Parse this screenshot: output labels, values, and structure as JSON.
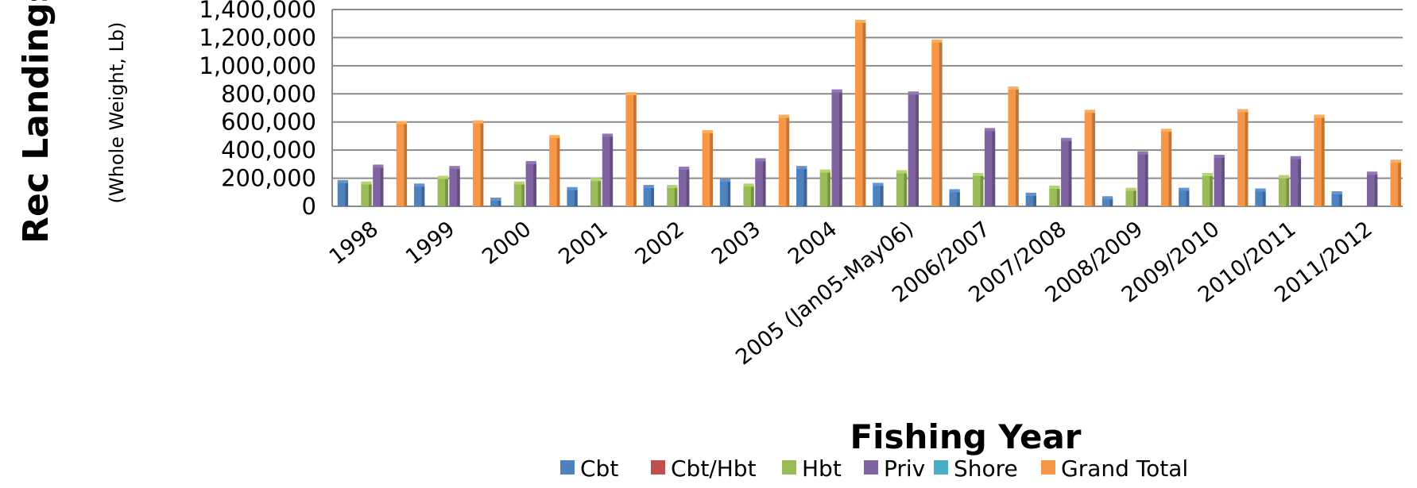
{
  "chart_data": {
    "type": "bar",
    "ylabel": "Rec Landings",
    "ylabel_sub": "(Whole Weight, Lb)",
    "xlabel": "Fishing Year",
    "ylim": [
      0,
      1400000
    ],
    "yticks": [
      "0",
      "200,000",
      "400,000",
      "600,000",
      "800,000",
      "1,000,000",
      "1,200,000",
      "1,400,000"
    ],
    "categories": [
      "1998",
      "1999",
      "2000",
      "2001",
      "2002",
      "2003",
      "2004",
      "2005 (Jan05-May06)",
      "2006/2007",
      "2007/2008",
      "2008/2009",
      "2009/2010",
      "2010/2011",
      "2011/2012"
    ],
    "series": [
      {
        "name": "Cbt",
        "color": "#4F81BD",
        "values": [
          170000,
          145000,
          45000,
          120000,
          135000,
          180000,
          270000,
          150000,
          105000,
          80000,
          55000,
          115000,
          110000,
          90000
        ]
      },
      {
        "name": "Cbt/Hbt",
        "color": "#C0504D",
        "values": [
          0,
          0,
          0,
          0,
          0,
          0,
          0,
          0,
          0,
          0,
          0,
          0,
          0,
          0
        ]
      },
      {
        "name": "Hbt",
        "color": "#9BBB59",
        "values": [
          160000,
          200000,
          160000,
          185000,
          135000,
          145000,
          245000,
          240000,
          220000,
          130000,
          115000,
          220000,
          205000,
          0
        ]
      },
      {
        "name": "Priv",
        "color": "#8064A2",
        "values": [
          280000,
          270000,
          305000,
          500000,
          265000,
          325000,
          815000,
          800000,
          540000,
          470000,
          375000,
          350000,
          340000,
          230000
        ]
      },
      {
        "name": "Shore",
        "color": "#4BACC6",
        "values": [
          0,
          0,
          0,
          0,
          0,
          0,
          0,
          0,
          0,
          0,
          0,
          0,
          0,
          0
        ]
      },
      {
        "name": "Grand Total",
        "color": "#F79646",
        "values": [
          590000,
          595000,
          490000,
          795000,
          525000,
          635000,
          1310000,
          1170000,
          835000,
          670000,
          535000,
          675000,
          635000,
          315000
        ]
      }
    ],
    "grid": true,
    "legend_position": "bottom"
  }
}
